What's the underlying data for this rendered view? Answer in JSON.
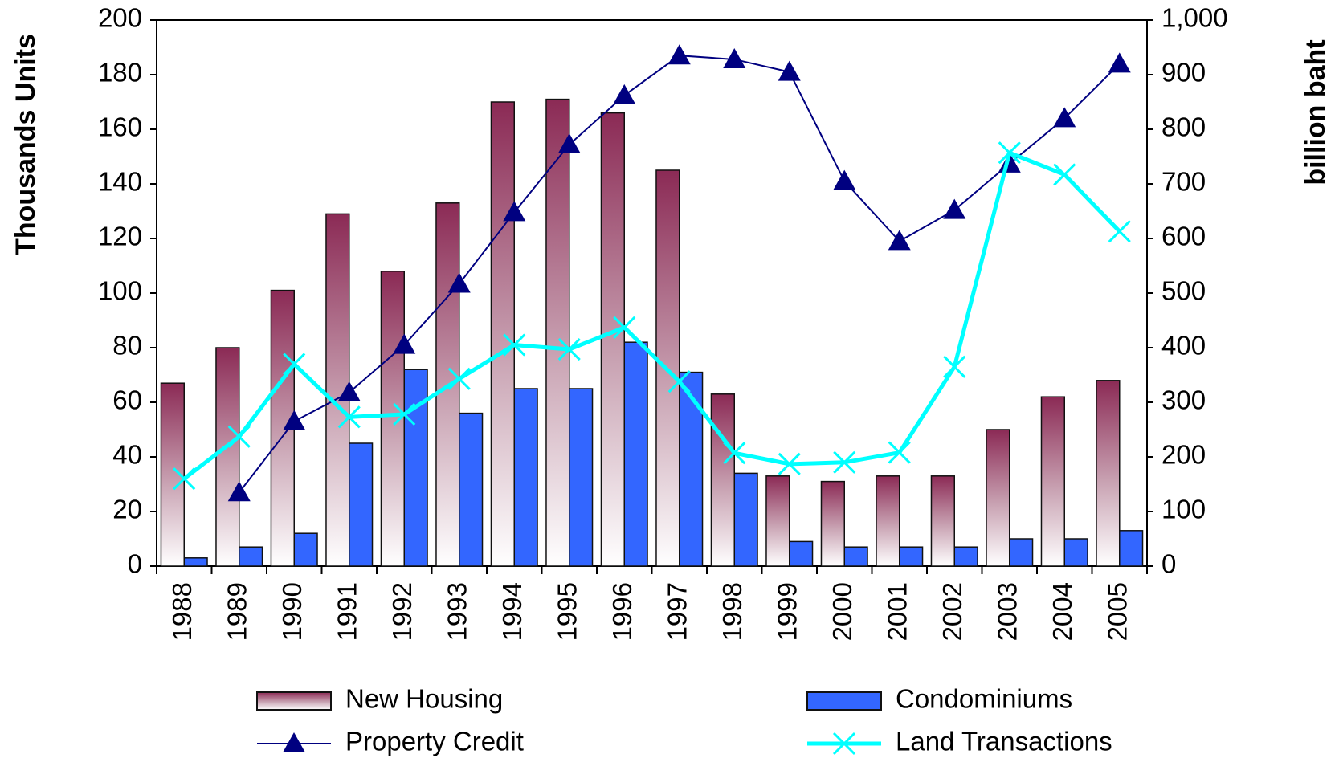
{
  "chart_data": {
    "type": "bar",
    "y_label": "Thousands Units",
    "y2_label": "billion baht",
    "categories": [
      "1988",
      "1989",
      "1990",
      "1991",
      "1992",
      "1993",
      "1994",
      "1995",
      "1996",
      "1997",
      "1998",
      "1999",
      "2000",
      "2001",
      "2002",
      "2003",
      "2004",
      "2005"
    ],
    "ylim": [
      0,
      200
    ],
    "yticks": [
      0,
      20,
      40,
      60,
      80,
      100,
      120,
      140,
      160,
      180,
      200
    ],
    "y2lim": [
      0,
      1000
    ],
    "y2ticks": [
      0,
      100,
      200,
      300,
      400,
      500,
      600,
      700,
      800,
      900,
      {
        "value": 1000,
        "label": "1,000"
      }
    ],
    "series": [
      {
        "name": "New Housing",
        "type": "bar",
        "color": "#8b2a55",
        "values": [
          67,
          80,
          101,
          129,
          108,
          133,
          170,
          171,
          166,
          145,
          63,
          33,
          31,
          33,
          33,
          50,
          62,
          68
        ]
      },
      {
        "name": "Condominiums",
        "type": "bar",
        "color": "#3366ff",
        "values": [
          3,
          7,
          12,
          45,
          72,
          56,
          65,
          65,
          82,
          71,
          34,
          9,
          7,
          7,
          7,
          10,
          10,
          13
        ]
      },
      {
        "name": "Property Credit",
        "type": "line",
        "axis": "y2",
        "marker": "triangle",
        "color": "#000080",
        "values": [
          null,
          135,
          265,
          318,
          405,
          517,
          648,
          772,
          862,
          935,
          928,
          905,
          705,
          595,
          652,
          737,
          820,
          920
        ]
      },
      {
        "name": "Land Transactions",
        "type": "line",
        "axis": "y2",
        "marker": "x",
        "color": "#00ffff",
        "values": [
          160,
          237,
          370,
          273,
          278,
          343,
          405,
          397,
          437,
          338,
          207,
          187,
          190,
          208,
          365,
          757,
          717,
          613
        ]
      }
    ]
  }
}
